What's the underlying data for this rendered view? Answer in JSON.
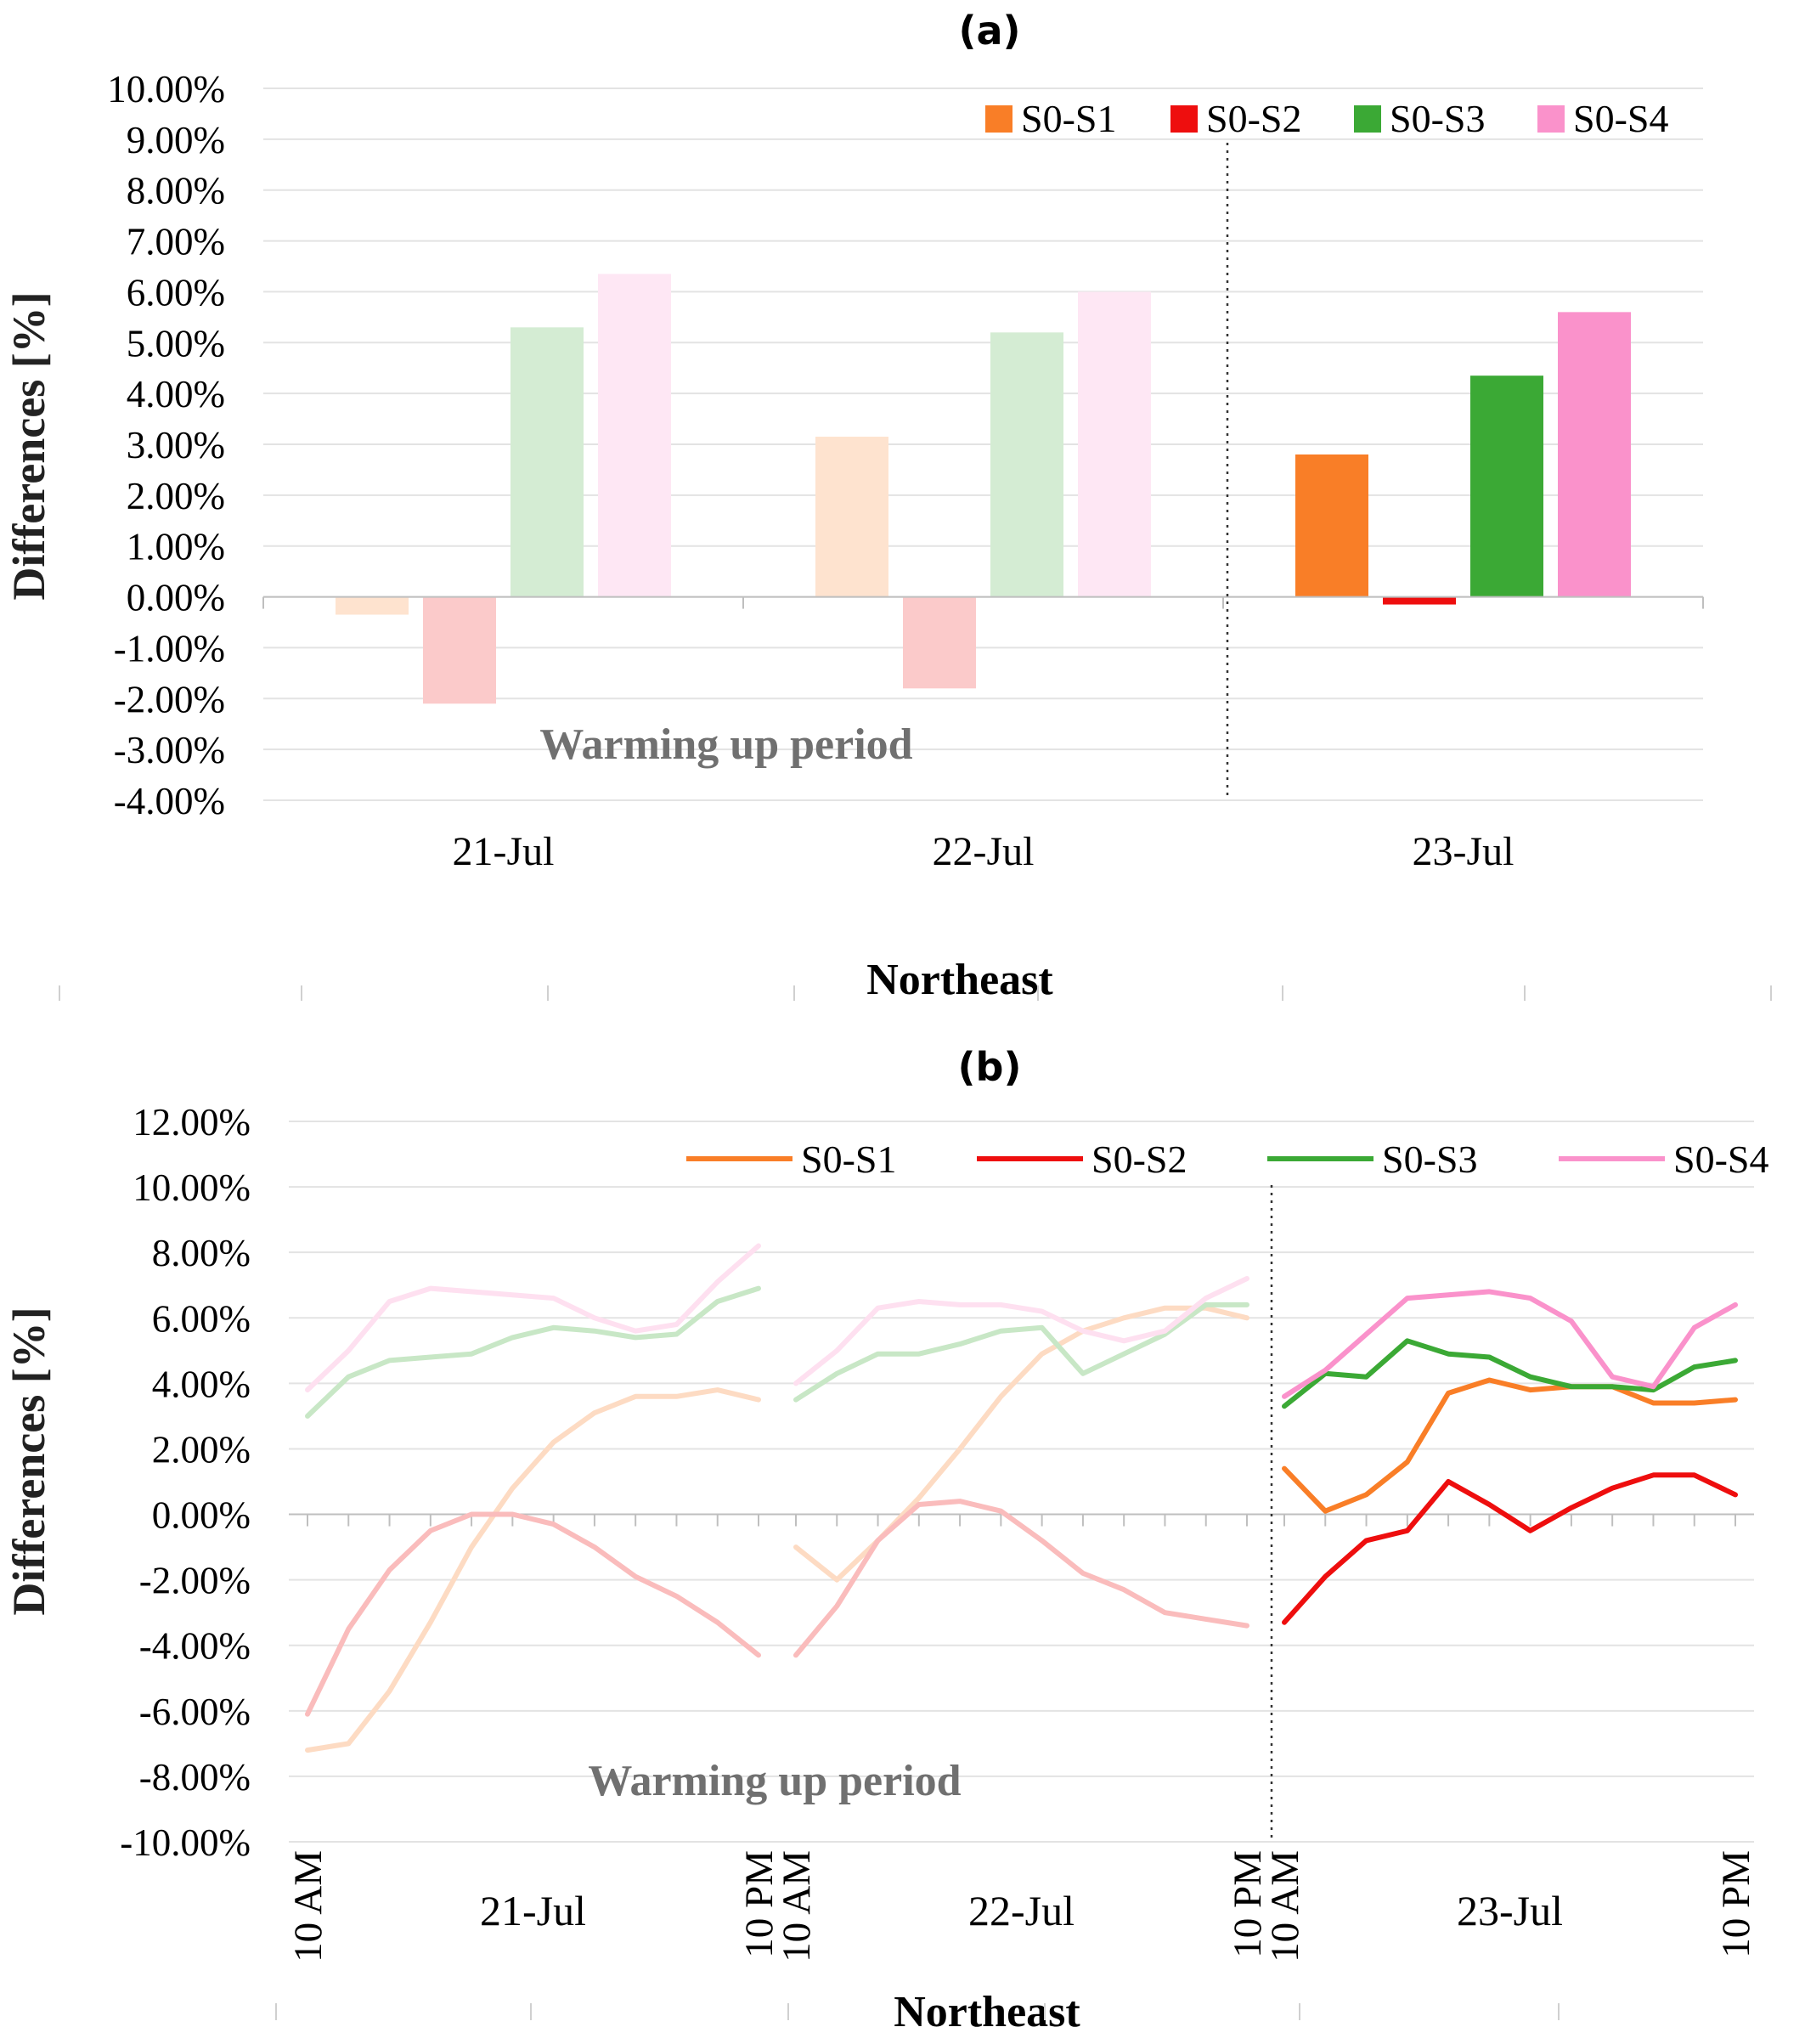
{
  "chart_data": [
    {
      "type": "bar",
      "panel_label": "(a)",
      "title": "Northeast",
      "ylabel": "Differences [%]",
      "ylim": [
        -4,
        10
      ],
      "ytick_step": 1,
      "ytick_labels": [
        "10.00%",
        "9.00%",
        "8.00%",
        "7.00%",
        "6.00%",
        "5.00%",
        "4.00%",
        "3.00%",
        "2.00%",
        "1.00%",
        "0.00%",
        "-1.00%",
        "-2.00%",
        "-3.00%",
        "-4.00%"
      ],
      "categories": [
        "21-Jul",
        "22-Jul",
        "23-Jul"
      ],
      "faded_categories": 2,
      "annotation": "Warming up period",
      "series": [
        {
          "name": "S0-S1",
          "color": "#F97E27",
          "values": [
            -0.35,
            3.15,
            2.8
          ]
        },
        {
          "name": "S0-S2",
          "color": "#EE0E0E",
          "values": [
            -2.1,
            -1.8,
            -0.15
          ]
        },
        {
          "name": "S0-S3",
          "color": "#3BA935",
          "values": [
            5.3,
            5.2,
            4.35
          ]
        },
        {
          "name": "S0-S4",
          "color": "#FA92CB",
          "values": [
            6.35,
            6.0,
            5.6
          ]
        }
      ]
    },
    {
      "type": "line",
      "panel_label": "(b)",
      "title": "Northeast",
      "ylabel": "Differences [%]",
      "ylim": [
        -10,
        12
      ],
      "ytick_step": 2,
      "ytick_labels": [
        "12.00%",
        "10.00%",
        "8.00%",
        "6.00%",
        "4.00%",
        "2.00%",
        "0.00%",
        "-2.00%",
        "-4.00%",
        "-6.00%",
        "-8.00%",
        "-10.00%"
      ],
      "days": [
        "21-Jul",
        "22-Jul",
        "23-Jul"
      ],
      "time_labels": [
        "10 AM",
        "10 PM"
      ],
      "faded_days": 2,
      "annotation": "Warming up period",
      "series": [
        {
          "name": "S0-S1",
          "color": "#F97E27",
          "values": [
            [
              -7.2,
              -7.0,
              -5.4,
              -3.3,
              -1.0,
              0.8,
              2.2,
              3.1,
              3.6,
              3.6,
              3.8,
              3.5
            ],
            [
              -1.0,
              -2.0,
              -0.8,
              0.5,
              2.0,
              3.6,
              4.9,
              5.6,
              6.0,
              6.3,
              6.3,
              6.0
            ],
            [
              1.4,
              0.1,
              0.6,
              1.6,
              3.7,
              4.1,
              3.8,
              3.9,
              3.9,
              3.4,
              3.4,
              3.5
            ]
          ]
        },
        {
          "name": "S0-S2",
          "color": "#EE0E0E",
          "values": [
            [
              -6.1,
              -3.5,
              -1.7,
              -0.5,
              0.0,
              0.0,
              -0.3,
              -1.0,
              -1.9,
              -2.5,
              -3.3,
              -4.3
            ],
            [
              -4.3,
              -2.8,
              -0.8,
              0.3,
              0.4,
              0.1,
              -0.8,
              -1.8,
              -2.3,
              -3.0,
              -3.2,
              -3.4
            ],
            [
              -3.3,
              -1.9,
              -0.8,
              -0.5,
              1.0,
              0.3,
              -0.5,
              0.2,
              0.8,
              1.2,
              1.2,
              0.6
            ]
          ]
        },
        {
          "name": "S0-S3",
          "color": "#3BA935",
          "values": [
            [
              3.0,
              4.2,
              4.7,
              4.8,
              4.9,
              5.4,
              5.7,
              5.6,
              5.4,
              5.5,
              6.5,
              6.9
            ],
            [
              3.5,
              4.3,
              4.9,
              4.9,
              5.2,
              5.6,
              5.7,
              4.3,
              4.9,
              5.5,
              6.4,
              6.4
            ],
            [
              3.3,
              4.3,
              4.2,
              5.3,
              4.9,
              4.8,
              4.2,
              3.9,
              3.9,
              3.8,
              4.5,
              4.7
            ]
          ]
        },
        {
          "name": "S0-S4",
          "color": "#FA92CB",
          "values": [
            [
              3.8,
              5.0,
              6.5,
              6.9,
              6.8,
              6.7,
              6.6,
              6.0,
              5.6,
              5.8,
              7.1,
              8.2
            ],
            [
              4.0,
              5.0,
              6.3,
              6.5,
              6.4,
              6.4,
              6.2,
              5.6,
              5.3,
              5.6,
              6.6,
              7.2
            ],
            [
              3.6,
              4.4,
              5.5,
              6.6,
              6.7,
              6.8,
              6.6,
              5.9,
              4.2,
              3.9,
              5.7,
              6.4
            ]
          ]
        }
      ]
    }
  ]
}
